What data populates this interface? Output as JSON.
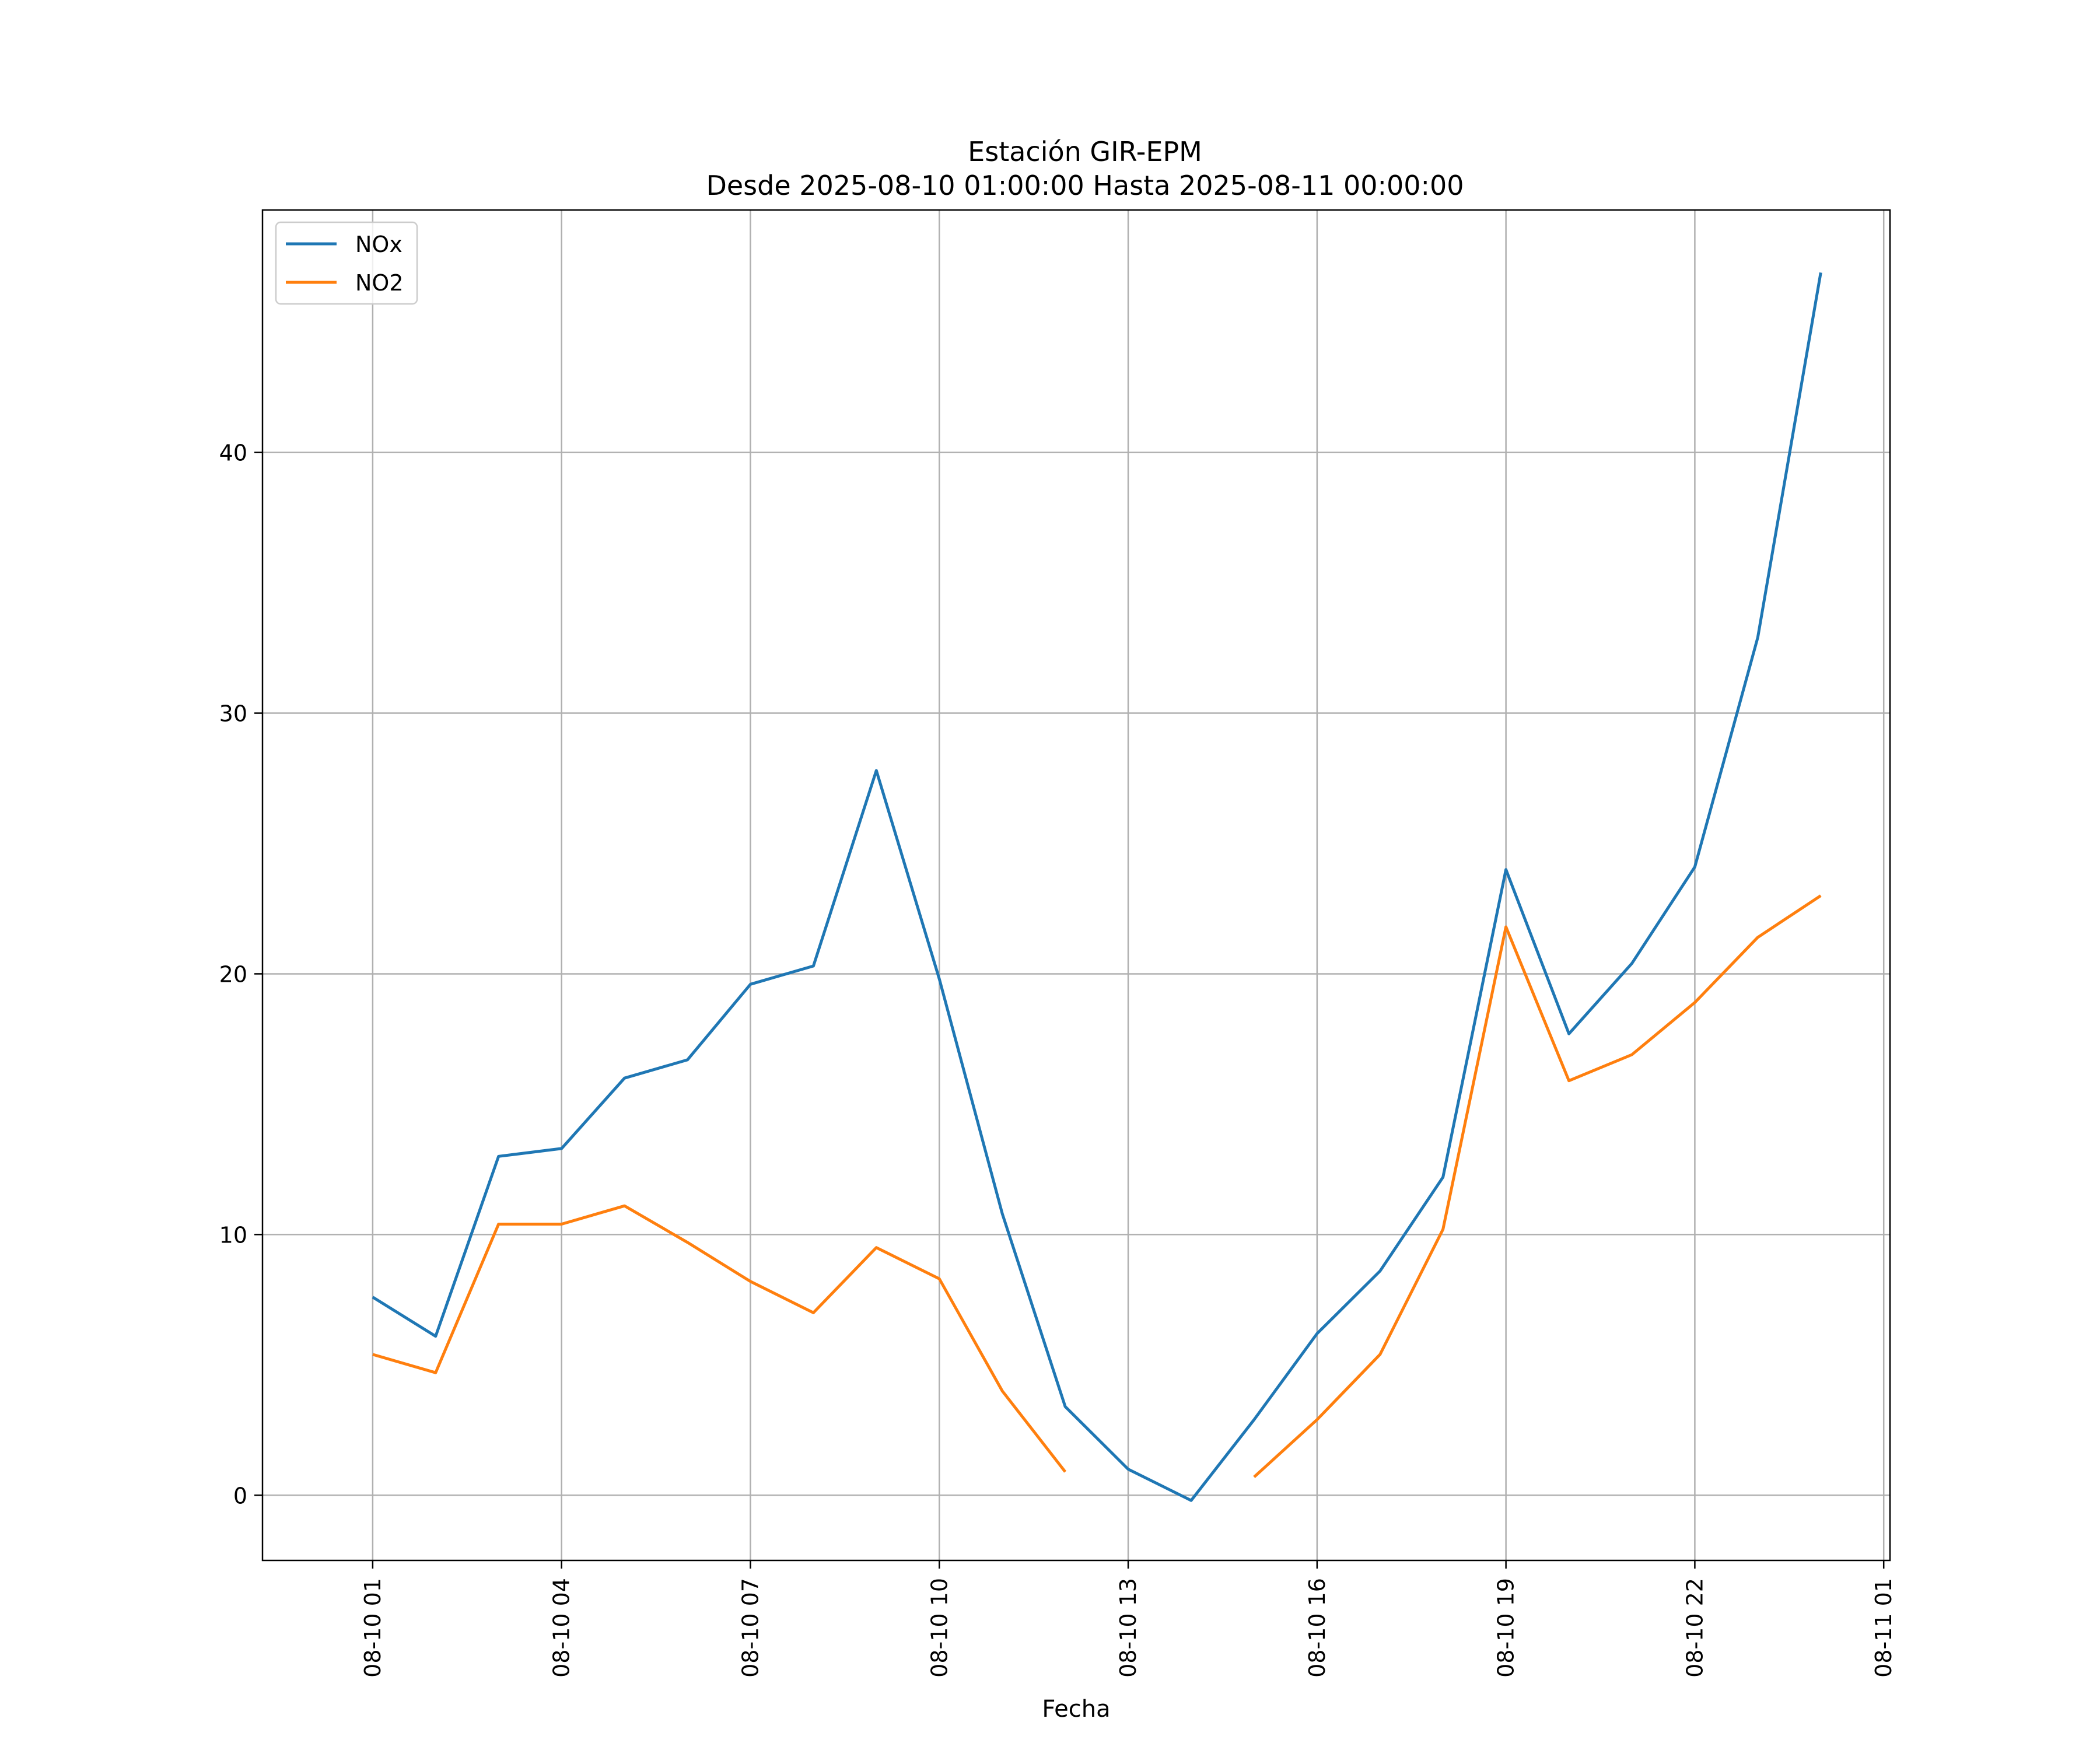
{
  "chart_data": {
    "type": "line",
    "title": "Estación GIR-EPM",
    "subtitle": "Desde 2025-08-10 01:00:00 Hasta 2025-08-11 00:00:00",
    "xlabel": "Fecha",
    "ylabel": "",
    "x": [
      "08-10 01",
      "08-10 02",
      "08-10 03",
      "08-10 04",
      "08-10 05",
      "08-10 06",
      "08-10 07",
      "08-10 08",
      "08-10 09",
      "08-10 10",
      "08-10 11",
      "08-10 12",
      "08-10 13",
      "08-10 14",
      "08-10 15",
      "08-10 16",
      "08-10 17",
      "08-10 18",
      "08-10 19",
      "08-10 20",
      "08-10 21",
      "08-10 22",
      "08-10 23",
      "08-11 00"
    ],
    "x_ticks": [
      "08-10 01",
      "08-10 04",
      "08-10 07",
      "08-10 10",
      "08-10 13",
      "08-10 16",
      "08-10 19",
      "08-10 22",
      "08-11 01"
    ],
    "x_range": [
      "08-10 00:00",
      "08-11 01:00"
    ],
    "y_ticks": [
      0,
      10,
      20,
      30,
      40
    ],
    "ylim": [
      -2.5,
      49.3
    ],
    "grid": true,
    "legend_position": "upper-left",
    "series": [
      {
        "name": "NOx",
        "color": "#1f77b4",
        "values": [
          7.6,
          6.1,
          13.0,
          13.3,
          16.0,
          16.7,
          19.6,
          20.3,
          27.8,
          19.8,
          10.8,
          3.4,
          1.0,
          -0.2,
          2.9,
          6.2,
          8.6,
          12.2,
          24.0,
          17.7,
          20.4,
          24.1,
          32.9,
          46.9
        ]
      },
      {
        "name": "NO2",
        "color": "#ff7f0e",
        "values": [
          5.4,
          4.7,
          10.4,
          10.4,
          11.1,
          9.7,
          8.2,
          7.0,
          9.5,
          8.3,
          4.0,
          0.9,
          null,
          null,
          0.7,
          2.9,
          5.4,
          10.2,
          21.8,
          15.9,
          16.9,
          18.9,
          21.4,
          23.0
        ]
      }
    ]
  }
}
